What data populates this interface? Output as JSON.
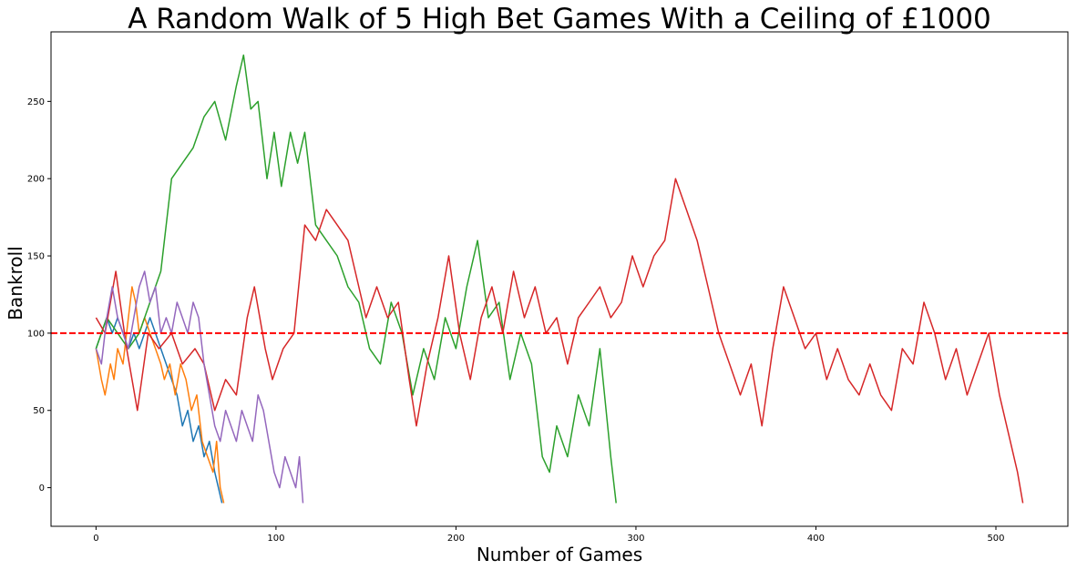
{
  "chart_data": {
    "type": "line",
    "title": "A Random Walk of 5 High Bet Games With a Ceiling of £1000",
    "xlabel": "Number of Games",
    "ylabel": "Bankroll",
    "xlim": [
      -25,
      540
    ],
    "ylim": [
      -25,
      295
    ],
    "x_ticks": [
      0,
      100,
      200,
      300,
      400,
      500
    ],
    "y_ticks": [
      0,
      50,
      100,
      150,
      200,
      250
    ],
    "grid": false,
    "reference_line": {
      "y": 100,
      "color": "#ff0000",
      "style": "dashed"
    },
    "series": [
      {
        "color": "#1f77b4",
        "points": [
          [
            0,
            90
          ],
          [
            3,
            100
          ],
          [
            6,
            110
          ],
          [
            9,
            100
          ],
          [
            12,
            110
          ],
          [
            15,
            100
          ],
          [
            18,
            90
          ],
          [
            21,
            100
          ],
          [
            24,
            90
          ],
          [
            27,
            100
          ],
          [
            30,
            110
          ],
          [
            33,
            100
          ],
          [
            36,
            90
          ],
          [
            39,
            80
          ],
          [
            42,
            70
          ],
          [
            45,
            60
          ],
          [
            48,
            40
          ],
          [
            51,
            50
          ],
          [
            54,
            30
          ],
          [
            57,
            40
          ],
          [
            60,
            20
          ],
          [
            63,
            30
          ],
          [
            66,
            10
          ],
          [
            68,
            0
          ],
          [
            70,
            -10
          ]
        ]
      },
      {
        "color": "#ff7f0e",
        "points": [
          [
            0,
            90
          ],
          [
            3,
            70
          ],
          [
            5,
            60
          ],
          [
            8,
            80
          ],
          [
            10,
            70
          ],
          [
            12,
            90
          ],
          [
            15,
            80
          ],
          [
            18,
            110
          ],
          [
            20,
            130
          ],
          [
            22,
            120
          ],
          [
            24,
            100
          ],
          [
            27,
            110
          ],
          [
            30,
            100
          ],
          [
            33,
            90
          ],
          [
            36,
            80
          ],
          [
            38,
            70
          ],
          [
            41,
            80
          ],
          [
            44,
            60
          ],
          [
            47,
            80
          ],
          [
            50,
            70
          ],
          [
            53,
            50
          ],
          [
            56,
            60
          ],
          [
            59,
            30
          ],
          [
            62,
            20
          ],
          [
            65,
            10
          ],
          [
            67,
            30
          ],
          [
            69,
            0
          ],
          [
            71,
            -10
          ]
        ]
      },
      {
        "color": "#2ca02c",
        "points": [
          [
            0,
            90
          ],
          [
            6,
            110
          ],
          [
            12,
            100
          ],
          [
            18,
            90
          ],
          [
            24,
            100
          ],
          [
            30,
            120
          ],
          [
            36,
            140
          ],
          [
            42,
            200
          ],
          [
            48,
            210
          ],
          [
            54,
            220
          ],
          [
            60,
            240
          ],
          [
            66,
            250
          ],
          [
            72,
            225
          ],
          [
            78,
            260
          ],
          [
            82,
            280
          ],
          [
            86,
            245
          ],
          [
            90,
            250
          ],
          [
            95,
            200
          ],
          [
            99,
            230
          ],
          [
            103,
            195
          ],
          [
            108,
            230
          ],
          [
            112,
            210
          ],
          [
            116,
            230
          ],
          [
            122,
            170
          ],
          [
            128,
            160
          ],
          [
            134,
            150
          ],
          [
            140,
            130
          ],
          [
            146,
            120
          ],
          [
            152,
            90
          ],
          [
            158,
            80
          ],
          [
            164,
            120
          ],
          [
            170,
            100
          ],
          [
            176,
            60
          ],
          [
            182,
            90
          ],
          [
            188,
            70
          ],
          [
            194,
            110
          ],
          [
            200,
            90
          ],
          [
            206,
            130
          ],
          [
            212,
            160
          ],
          [
            218,
            110
          ],
          [
            224,
            120
          ],
          [
            230,
            70
          ],
          [
            236,
            100
          ],
          [
            242,
            80
          ],
          [
            248,
            20
          ],
          [
            252,
            10
          ],
          [
            256,
            40
          ],
          [
            262,
            20
          ],
          [
            268,
            60
          ],
          [
            274,
            40
          ],
          [
            280,
            90
          ],
          [
            286,
            20
          ],
          [
            289,
            -10
          ]
        ]
      },
      {
        "color": "#d62728",
        "points": [
          [
            0,
            110
          ],
          [
            5,
            100
          ],
          [
            11,
            140
          ],
          [
            17,
            90
          ],
          [
            23,
            50
          ],
          [
            29,
            100
          ],
          [
            35,
            90
          ],
          [
            42,
            100
          ],
          [
            48,
            80
          ],
          [
            55,
            90
          ],
          [
            60,
            80
          ],
          [
            66,
            50
          ],
          [
            72,
            70
          ],
          [
            78,
            60
          ],
          [
            84,
            110
          ],
          [
            88,
            130
          ],
          [
            94,
            90
          ],
          [
            98,
            70
          ],
          [
            104,
            90
          ],
          [
            110,
            100
          ],
          [
            116,
            170
          ],
          [
            122,
            160
          ],
          [
            128,
            180
          ],
          [
            134,
            170
          ],
          [
            140,
            160
          ],
          [
            146,
            130
          ],
          [
            150,
            110
          ],
          [
            156,
            130
          ],
          [
            162,
            110
          ],
          [
            168,
            120
          ],
          [
            174,
            70
          ],
          [
            178,
            40
          ],
          [
            184,
            80
          ],
          [
            190,
            110
          ],
          [
            196,
            150
          ],
          [
            202,
            100
          ],
          [
            208,
            70
          ],
          [
            214,
            110
          ],
          [
            220,
            130
          ],
          [
            226,
            100
          ],
          [
            232,
            140
          ],
          [
            238,
            110
          ],
          [
            244,
            130
          ],
          [
            250,
            100
          ],
          [
            256,
            110
          ],
          [
            262,
            80
          ],
          [
            268,
            110
          ],
          [
            274,
            120
          ],
          [
            280,
            130
          ],
          [
            286,
            110
          ],
          [
            292,
            120
          ],
          [
            298,
            150
          ],
          [
            304,
            130
          ],
          [
            310,
            150
          ],
          [
            316,
            160
          ],
          [
            322,
            200
          ],
          [
            328,
            180
          ],
          [
            334,
            160
          ],
          [
            340,
            130
          ],
          [
            346,
            100
          ],
          [
            352,
            80
          ],
          [
            358,
            60
          ],
          [
            364,
            80
          ],
          [
            370,
            40
          ],
          [
            376,
            90
          ],
          [
            382,
            130
          ],
          [
            388,
            110
          ],
          [
            394,
            90
          ],
          [
            400,
            100
          ],
          [
            406,
            70
          ],
          [
            412,
            90
          ],
          [
            418,
            70
          ],
          [
            424,
            60
          ],
          [
            430,
            80
          ],
          [
            436,
            60
          ],
          [
            442,
            50
          ],
          [
            448,
            90
          ],
          [
            454,
            80
          ],
          [
            460,
            120
          ],
          [
            466,
            100
          ],
          [
            472,
            70
          ],
          [
            478,
            90
          ],
          [
            484,
            60
          ],
          [
            490,
            80
          ],
          [
            496,
            100
          ],
          [
            502,
            60
          ],
          [
            508,
            30
          ],
          [
            512,
            10
          ],
          [
            515,
            -10
          ]
        ]
      },
      {
        "color": "#9467bd",
        "points": [
          [
            0,
            90
          ],
          [
            3,
            80
          ],
          [
            6,
            110
          ],
          [
            9,
            130
          ],
          [
            12,
            110
          ],
          [
            15,
            100
          ],
          [
            18,
            90
          ],
          [
            21,
            110
          ],
          [
            24,
            130
          ],
          [
            27,
            140
          ],
          [
            30,
            120
          ],
          [
            33,
            130
          ],
          [
            36,
            100
          ],
          [
            39,
            110
          ],
          [
            42,
            100
          ],
          [
            45,
            120
          ],
          [
            48,
            110
          ],
          [
            51,
            100
          ],
          [
            54,
            120
          ],
          [
            57,
            110
          ],
          [
            60,
            80
          ],
          [
            63,
            60
          ],
          [
            66,
            40
          ],
          [
            69,
            30
          ],
          [
            72,
            50
          ],
          [
            75,
            40
          ],
          [
            78,
            30
          ],
          [
            81,
            50
          ],
          [
            84,
            40
          ],
          [
            87,
            30
          ],
          [
            90,
            60
          ],
          [
            93,
            50
          ],
          [
            96,
            30
          ],
          [
            99,
            10
          ],
          [
            102,
            0
          ],
          [
            105,
            20
          ],
          [
            108,
            10
          ],
          [
            111,
            0
          ],
          [
            113,
            20
          ],
          [
            115,
            -10
          ]
        ]
      }
    ]
  }
}
